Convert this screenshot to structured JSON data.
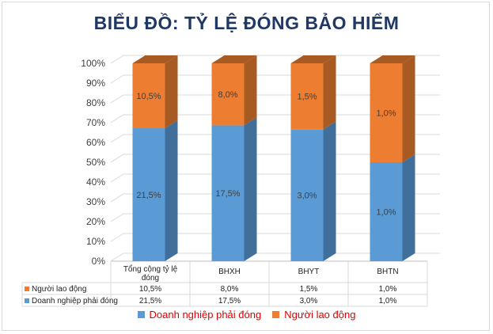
{
  "chart_data": {
    "type": "bar",
    "stacked": true,
    "percent_stacked": true,
    "title": "BIỂU ĐỒ: TỶ LỆ ĐÓNG BẢO HIỂM",
    "categories": [
      "Tổng cộng tỷ lệ đóng",
      "BHXH",
      "BHYT",
      "BHTN"
    ],
    "series": [
      {
        "name": "Doanh nghiệp phải đóng",
        "values": [
          21.5,
          17.5,
          3.0,
          1.0
        ],
        "labels": [
          "21,5%",
          "17,5%",
          "3,0%",
          "1,0%"
        ],
        "color": "#5b9bd5",
        "side_color": "#3f6f9a"
      },
      {
        "name": "Người lao động",
        "values": [
          10.5,
          8.0,
          1.5,
          1.0
        ],
        "labels": [
          "10,5%",
          "8,0%",
          "1,5%",
          "1,0%"
        ],
        "color": "#ed7d31",
        "side_color": "#a75a22"
      }
    ],
    "yticks": [
      "0%",
      "10%",
      "20%",
      "30%",
      "40%",
      "50%",
      "60%",
      "70%",
      "80%",
      "90%",
      "100%"
    ],
    "ylim": [
      0,
      100
    ],
    "grid": true,
    "legend": "bottom",
    "data_table": true
  }
}
